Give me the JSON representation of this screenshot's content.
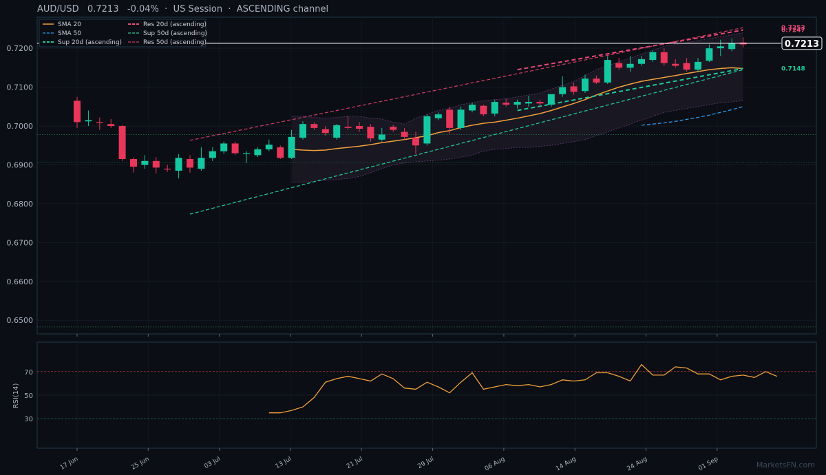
{
  "header": {
    "symbol": "AUD/USD",
    "price": "0.7213",
    "change": "-0.04%",
    "session": "US Session",
    "channel": "ASCENDING channel"
  },
  "watermark": "MarketsFN.com",
  "colors": {
    "background": "#0b0e14",
    "panel_border": "#1f3a4d",
    "up": "#14c9a2",
    "down": "#e8375a",
    "sma20": "#f0a03c",
    "sma50": "#2a9df4",
    "sup": "#21c997",
    "res": "#e84a7a",
    "res50": "#c93a62",
    "rsi": "#f0a03c"
  },
  "chart_data": {
    "type": "candlestick",
    "x_tick_labels": [
      "17 Jun",
      "25 Jun",
      "03 Jul",
      "13 Jul",
      "21 Jul",
      "29 Jul",
      "06 Aug",
      "14 Aug",
      "24 Aug",
      "01 Sep"
    ],
    "y_tick_labels": [
      "0.6500",
      "0.6600",
      "0.6700",
      "0.6800",
      "0.6900",
      "0.7000",
      "0.7100",
      "0.7200"
    ],
    "ylim": [
      0.6465,
      0.728
    ],
    "last_price_label": "0.7213",
    "candles": [
      [
        0.7065,
        0.7075,
        0.6995,
        0.701
      ],
      [
        0.7012,
        0.704,
        0.7,
        0.7015
      ],
      [
        0.701,
        0.7022,
        0.699,
        0.7008
      ],
      [
        0.7005,
        0.7018,
        0.6995,
        0.7
      ],
      [
        0.7,
        0.7002,
        0.691,
        0.6915
      ],
      [
        0.6915,
        0.692,
        0.688,
        0.6895
      ],
      [
        0.69,
        0.6925,
        0.689,
        0.691
      ],
      [
        0.691,
        0.692,
        0.6878,
        0.6893
      ],
      [
        0.689,
        0.69,
        0.6882,
        0.6888
      ],
      [
        0.6885,
        0.6928,
        0.6865,
        0.6918
      ],
      [
        0.6915,
        0.6925,
        0.688,
        0.6893
      ],
      [
        0.689,
        0.6945,
        0.6885,
        0.6918
      ],
      [
        0.6918,
        0.6945,
        0.691,
        0.6935
      ],
      [
        0.6935,
        0.696,
        0.6928,
        0.6955
      ],
      [
        0.6955,
        0.696,
        0.6925,
        0.693
      ],
      [
        0.6928,
        0.6935,
        0.6905,
        0.693
      ],
      [
        0.6925,
        0.6945,
        0.692,
        0.694
      ],
      [
        0.694,
        0.6965,
        0.6935,
        0.6952
      ],
      [
        0.6945,
        0.695,
        0.6915,
        0.6918
      ],
      [
        0.6918,
        0.699,
        0.6915,
        0.6972
      ],
      [
        0.697,
        0.7012,
        0.6965,
        0.7005
      ],
      [
        0.7005,
        0.701,
        0.699,
        0.6995
      ],
      [
        0.6992,
        0.7,
        0.6975,
        0.6982
      ],
      [
        0.697,
        0.7005,
        0.6965,
        0.7002
      ],
      [
        0.6998,
        0.7025,
        0.699,
        0.6995
      ],
      [
        0.7,
        0.701,
        0.6985,
        0.6993
      ],
      [
        0.6998,
        0.7005,
        0.696,
        0.6968
      ],
      [
        0.6965,
        0.6995,
        0.696,
        0.6978
      ],
      [
        0.6998,
        0.7003,
        0.6985,
        0.699
      ],
      [
        0.6985,
        0.6995,
        0.6965,
        0.6972
      ],
      [
        0.697,
        0.6985,
        0.6928,
        0.695
      ],
      [
        0.6955,
        0.703,
        0.695,
        0.7025
      ],
      [
        0.702,
        0.7035,
        0.7015,
        0.703
      ],
      [
        0.7042,
        0.705,
        0.698,
        0.6995
      ],
      [
        0.6995,
        0.705,
        0.699,
        0.7042
      ],
      [
        0.704,
        0.706,
        0.7035,
        0.7055
      ],
      [
        0.7052,
        0.7055,
        0.7025,
        0.703
      ],
      [
        0.7032,
        0.7068,
        0.7025,
        0.7062
      ],
      [
        0.706,
        0.707,
        0.705,
        0.7055
      ],
      [
        0.7055,
        0.7068,
        0.7045,
        0.7062
      ],
      [
        0.7058,
        0.7078,
        0.705,
        0.7062
      ],
      [
        0.7062,
        0.7068,
        0.705,
        0.7058
      ],
      [
        0.7055,
        0.708,
        0.705,
        0.7082
      ],
      [
        0.7082,
        0.7128,
        0.7075,
        0.71
      ],
      [
        0.7102,
        0.7112,
        0.708,
        0.7088
      ],
      [
        0.709,
        0.7132,
        0.7085,
        0.7122
      ],
      [
        0.7122,
        0.713,
        0.7108,
        0.7112
      ],
      [
        0.7112,
        0.718,
        0.7108,
        0.717
      ],
      [
        0.7162,
        0.7175,
        0.7145,
        0.715
      ],
      [
        0.715,
        0.718,
        0.714,
        0.716
      ],
      [
        0.716,
        0.718,
        0.7155,
        0.7172
      ],
      [
        0.717,
        0.7195,
        0.7165,
        0.719
      ],
      [
        0.719,
        0.72,
        0.7155,
        0.7162
      ],
      [
        0.716,
        0.7172,
        0.715,
        0.7155
      ],
      [
        0.7162,
        0.7175,
        0.714,
        0.7145
      ],
      [
        0.7145,
        0.7175,
        0.714,
        0.7165
      ],
      [
        0.7168,
        0.721,
        0.7165,
        0.72
      ],
      [
        0.72,
        0.7222,
        0.718,
        0.7205
      ],
      [
        0.7198,
        0.7225,
        0.7192,
        0.7213
      ],
      [
        0.7215,
        0.7228,
        0.7202,
        0.721
      ]
    ],
    "bollinger_start_index": 19,
    "bollinger_upper": [
      0.7025,
      0.7025,
      0.7022,
      0.702,
      0.7022,
      0.7025,
      0.7025,
      0.702,
      0.7018,
      0.701,
      0.7005,
      0.702,
      0.703,
      0.704,
      0.7045,
      0.7055,
      0.706,
      0.7065,
      0.7068,
      0.707,
      0.7075,
      0.708,
      0.7085,
      0.7095,
      0.7105,
      0.7115,
      0.713,
      0.7145,
      0.7155,
      0.7165,
      0.7175,
      0.7185,
      0.7195,
      0.7205,
      0.721,
      0.7215,
      0.722,
      0.7225,
      0.723,
      0.7235,
      0.724
    ],
    "bollinger_lower": [
      0.6855,
      0.6855,
      0.6858,
      0.686,
      0.6862,
      0.6865,
      0.687,
      0.688,
      0.689,
      0.69,
      0.6905,
      0.6908,
      0.691,
      0.6912,
      0.6915,
      0.692,
      0.6925,
      0.6935,
      0.694,
      0.6942,
      0.6945,
      0.6945,
      0.6948,
      0.695,
      0.6955,
      0.696,
      0.6965,
      0.6975,
      0.6985,
      0.6995,
      0.7005,
      0.7015,
      0.7025,
      0.7035,
      0.704,
      0.7045,
      0.705,
      0.7055,
      0.706,
      0.7062,
      0.7065
    ],
    "series": [
      {
        "name": "SMA 20",
        "style": "solid",
        "color": "#f0a03c",
        "start_index": 19,
        "values": [
          0.694,
          0.6938,
          0.6937,
          0.6938,
          0.6942,
          0.6945,
          0.6948,
          0.6952,
          0.6957,
          0.6961,
          0.6965,
          0.697,
          0.6975,
          0.6983,
          0.6988,
          0.6996,
          0.7002,
          0.7007,
          0.701,
          0.7015,
          0.702,
          0.7026,
          0.7032,
          0.704,
          0.7049,
          0.7058,
          0.7068,
          0.708,
          0.709,
          0.71,
          0.7108,
          0.7115,
          0.712,
          0.7125,
          0.713,
          0.7135,
          0.714,
          0.7145,
          0.7148,
          0.715,
          0.7148
        ]
      },
      {
        "name": "SMA 50",
        "style": "dashed",
        "color": "#2a9df4",
        "start_index": 50,
        "values": [
          0.7002,
          0.7005,
          0.7008,
          0.7012,
          0.7017,
          0.7022,
          0.7028,
          0.7035,
          0.7042,
          0.705
        ]
      },
      {
        "name": "Sup 20d (ascending)",
        "style": "dashed-bold",
        "color": "#21c997",
        "line": [
          [
            39,
            0.704
          ],
          [
            59,
            0.7148
          ]
        ]
      },
      {
        "name": "Res 20d (ascending)",
        "style": "dashed-bold",
        "color": "#e84a7a",
        "line": [
          [
            39,
            0.7145
          ],
          [
            59,
            0.7247
          ]
        ]
      },
      {
        "name": "Sup 50d (ascending)",
        "style": "dashed",
        "color": "#21c997",
        "line": [
          [
            10,
            0.6773
          ],
          [
            59,
            0.7145
          ]
        ]
      },
      {
        "name": "Res 50d (ascending)",
        "style": "dashed",
        "color": "#c93a62",
        "line": [
          [
            10,
            0.6963
          ],
          [
            59,
            0.7253
          ]
        ]
      }
    ],
    "line_end_labels": [
      "0.7253",
      "0.7247",
      "0.7148"
    ],
    "horizontal_levels": [
      0.6978,
      0.6907,
      0.6483
    ],
    "rsi": {
      "label": "RSI(14)",
      "ylim": [
        5,
        95
      ],
      "tick_labels": [
        "30",
        "50",
        "70"
      ],
      "levels": [
        30,
        50,
        70
      ],
      "start_index": 17,
      "values": [
        35,
        35,
        37,
        40,
        48,
        61,
        64,
        66,
        64,
        62,
        68,
        64,
        56,
        55,
        61,
        57,
        52,
        61,
        69,
        55,
        57,
        59,
        58,
        59,
        57,
        59,
        63,
        62,
        63,
        69,
        69,
        66,
        62,
        76,
        67,
        67,
        74,
        73,
        68,
        68,
        63,
        66,
        67,
        65,
        70,
        66
      ]
    }
  }
}
